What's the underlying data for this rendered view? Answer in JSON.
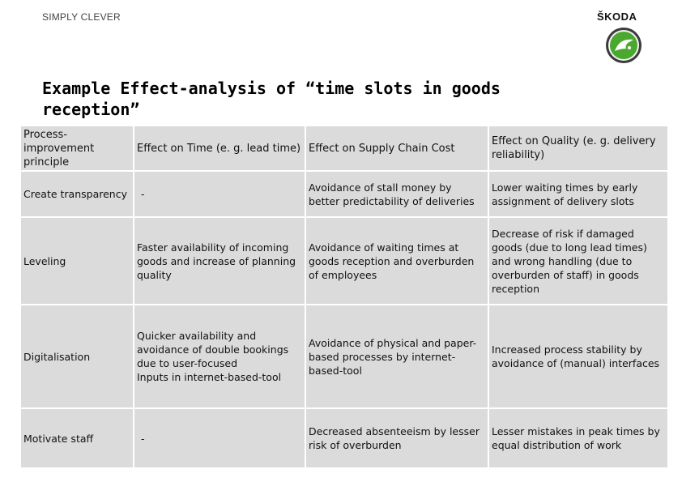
{
  "header": {
    "tagline": "SIMPLY CLEVER",
    "brand": "ŠKODA",
    "logo_icon": "skoda-arrow-logo-icon",
    "brand_color": "#4ba82e"
  },
  "title": "Example Effect-analysis of “time slots in goods reception”",
  "table": {
    "headers": [
      "Process-improvement principle",
      "Effect on  Time (e. g. lead time)",
      "Effect on Supply Chain Cost",
      "Effect on Quality (e. g. delivery reliability)"
    ],
    "rows": [
      {
        "principle": "Create transparency",
        "time": "-",
        "cost": "Avoidance of stall money by better predictability of deliveries",
        "quality": "Lower waiting times by early assignment of delivery slots"
      },
      {
        "principle": "Leveling",
        "time": "Faster availability of incoming goods and increase of planning quality",
        "cost": "Avoidance of waiting times at goods reception and overburden of employees",
        "quality": "Decrease of risk if damaged goods (due to long lead times) and wrong handling (due to overburden of staff) in goods reception"
      },
      {
        "principle": "Digitalisation",
        "time": "Quicker availability and avoidance of double bookings due to user-focused\nInputs in internet-based-tool",
        "cost": "Avoidance of physical and paper-based processes by internet-based-tool",
        "quality": "Increased process stability by avoidance of (manual) interfaces"
      },
      {
        "principle": "Motivate staff",
        "time": "-",
        "cost": "Decreased absenteeism by lesser risk of overburden",
        "quality": "Lesser mistakes in peak times by equal distribution of work"
      }
    ]
  }
}
